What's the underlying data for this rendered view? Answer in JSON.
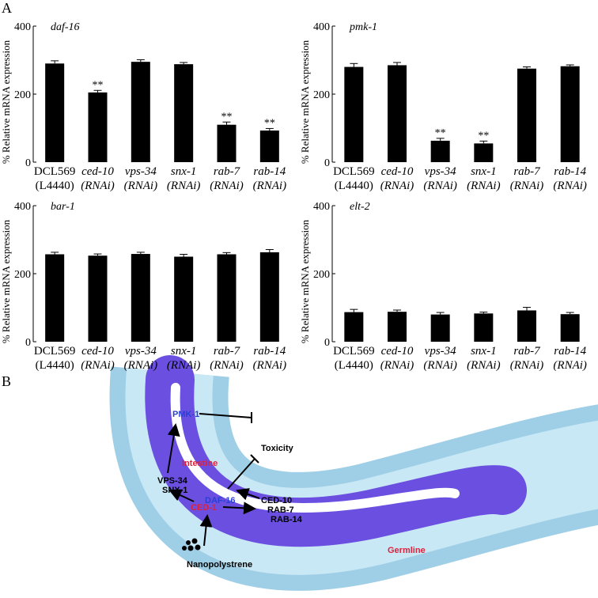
{
  "panel_labels": [
    "A",
    "B"
  ],
  "chart_data": [
    {
      "type": "bar",
      "title": "daf-16",
      "y_label": "% Relative mRNA expression",
      "categories": [
        [
          "DCL569",
          "(L4440)"
        ],
        [
          "ced-10",
          "(RNAi)"
        ],
        [
          "vps-34",
          "(RNAi)"
        ],
        [
          "snx-1",
          "(RNAi)"
        ],
        [
          "rab-7",
          "(RNAi)"
        ],
        [
          "rab-14",
          "(RNAi)"
        ]
      ],
      "values": [
        290,
        205,
        295,
        288,
        110,
        93
      ],
      "errors": [
        8,
        6,
        6,
        5,
        8,
        6
      ],
      "significance": [
        null,
        "**",
        null,
        null,
        "**",
        "**"
      ],
      "ylim": [
        0,
        400
      ],
      "yticks": [
        0,
        200,
        400
      ],
      "color": "#000000"
    },
    {
      "type": "bar",
      "title": "pmk-1",
      "y_label": "% Relative mRNA expression",
      "categories": [
        [
          "DCL569",
          "(L4440)"
        ],
        [
          "ced-10",
          "(RNAi)"
        ],
        [
          "vps-34",
          "(RNAi)"
        ],
        [
          "snx-1",
          "(RNAi)"
        ],
        [
          "rab-7",
          "(RNAi)"
        ],
        [
          "rab-14",
          "(RNAi)"
        ]
      ],
      "values": [
        280,
        285,
        63,
        55,
        275,
        282
      ],
      "errors": [
        10,
        8,
        7,
        7,
        5,
        4
      ],
      "significance": [
        null,
        null,
        "**",
        "**",
        null,
        null
      ],
      "ylim": [
        0,
        400
      ],
      "yticks": [
        0,
        200,
        400
      ],
      "color": "#000000"
    },
    {
      "type": "bar",
      "title": "bar-1",
      "y_label": "% Relative mRNA expression",
      "categories": [
        [
          "DCL569",
          "(L4440)"
        ],
        [
          "ced-10",
          "(RNAi)"
        ],
        [
          "vps-34",
          "(RNAi)"
        ],
        [
          "snx-1",
          "(RNAi)"
        ],
        [
          "rab-7",
          "(RNAi)"
        ],
        [
          "rab-14",
          "(RNAi)"
        ]
      ],
      "values": [
        257,
        253,
        258,
        250,
        257,
        263
      ],
      "errors": [
        6,
        5,
        5,
        7,
        5,
        8
      ],
      "significance": [
        null,
        null,
        null,
        null,
        null,
        null
      ],
      "ylim": [
        0,
        400
      ],
      "yticks": [
        0,
        200,
        400
      ],
      "color": "#000000"
    },
    {
      "type": "bar",
      "title": "elt-2",
      "y_label": "% Relative mRNA expression",
      "categories": [
        [
          "DCL569",
          "(L4440)"
        ],
        [
          "ced-10",
          "(RNAi)"
        ],
        [
          "vps-34",
          "(RNAi)"
        ],
        [
          "snx-1",
          "(RNAi)"
        ],
        [
          "rab-7",
          "(RNAi)"
        ],
        [
          "rab-14",
          "(RNAi)"
        ]
      ],
      "values": [
        87,
        88,
        80,
        83,
        92,
        81
      ],
      "errors": [
        8,
        5,
        6,
        4,
        9,
        5
      ],
      "significance": [
        null,
        null,
        null,
        null,
        null,
        null
      ],
      "ylim": [
        0,
        400
      ],
      "yticks": [
        0,
        200,
        400
      ],
      "color": "#000000"
    }
  ],
  "diagram": {
    "nodes": [
      {
        "label": "PMK-1",
        "color": "#2a3fd6"
      },
      {
        "label": "Toxicity",
        "color": "#000000"
      },
      {
        "label": "Intestine",
        "color": "#e0203a"
      },
      {
        "label": "VPS-34",
        "color": "#000000"
      },
      {
        "label": "SNX-1",
        "color": "#000000"
      },
      {
        "label": "DAF-16",
        "color": "#2a3fd6"
      },
      {
        "label": "CED-10",
        "color": "#000000"
      },
      {
        "label": "RAB-7",
        "color": "#000000"
      },
      {
        "label": "RAB-14",
        "color": "#000000"
      },
      {
        "label": "CED-1",
        "color": "#e0203a"
      },
      {
        "label": "Nanopolystrene",
        "color": "#000000"
      },
      {
        "label": "Germline",
        "color": "#e0203a"
      }
    ]
  }
}
